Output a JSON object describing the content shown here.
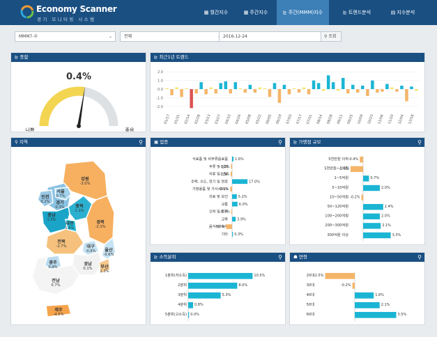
{
  "header": {
    "logo_title": "Economy Scanner",
    "logo_subtitle": "경기 모니터링 시스템",
    "nav": [
      {
        "label": "월간지수",
        "icon": "calendar-icon",
        "active": false
      },
      {
        "label": "주간지수",
        "icon": "calendar-icon",
        "active": false
      },
      {
        "label": "주간(MMM)지수",
        "icon": "chart-icon",
        "active": true
      },
      {
        "label": "트렌드분석",
        "icon": "trend-icon",
        "active": false
      },
      {
        "label": "지수분석",
        "icon": "analysis-icon",
        "active": false
      }
    ]
  },
  "filters": {
    "index_select": "MMM7-수",
    "region_select": "전체",
    "date": "2016-12-24",
    "search_label": "조회"
  },
  "summary": {
    "title": "종합",
    "value": "0.4%",
    "bad_label": "나쁨",
    "good_label": "좋음",
    "gauge_fraction": 0.55
  },
  "trend": {
    "title": "최근1년 트렌드",
    "chart_data": {
      "type": "bar",
      "ylim": [
        -2.5,
        2.5
      ],
      "yticks": [
        "2.0",
        "1.0",
        "0.0",
        "-1.0",
        "-2.0"
      ],
      "yticks_values": [
        2.0,
        1.0,
        0.0,
        -1.0,
        -2.0
      ],
      "xticks": [
        "01/17",
        "01/31",
        "02/14",
        "02/28",
        "03/13",
        "03/27",
        "04/10",
        "04/24",
        "05/08",
        "05/22",
        "06/05",
        "06/19",
        "07/03",
        "07/17",
        "07/31",
        "08/14",
        "08/28",
        "09/11",
        "09/25",
        "10/09",
        "10/23",
        "11/06",
        "11/20",
        "12/04",
        "12/18"
      ],
      "values": [
        0.1,
        -0.7,
        0.2,
        -0.9,
        0.1,
        -2.2,
        -0.5,
        0.8,
        -0.6,
        0.2,
        -0.5,
        0.7,
        0.9,
        -0.5,
        0.8,
        0.1,
        -0.4,
        0.5,
        -0.4,
        0.2,
        0.1,
        -0.9,
        0.7,
        -1.6,
        0.5,
        -0.6,
        0.1,
        -0.4,
        0.2,
        -0.6,
        1.0,
        0.7,
        -0.2,
        1.6,
        0.8,
        -0.2,
        1.3,
        -0.5,
        0.5,
        -0.4,
        0.4,
        -0.8,
        1.0,
        -0.4,
        -0.3,
        0.6,
        0.2,
        -0.3,
        0.4,
        -1.4,
        0.3,
        -0.2
      ],
      "highlight_index": 5,
      "colors": {
        "positive": "#1bb5d4",
        "negative": "#f4b569",
        "highlight": "#d9534f",
        "neutral": "#f5e46a"
      }
    }
  },
  "region": {
    "title": "지역",
    "labels": [
      {
        "name": "강원",
        "value": "-3.0%"
      },
      {
        "name": "서울",
        "value": "0.7%"
      },
      {
        "name": "인천",
        "value": "0.2%"
      },
      {
        "name": "경기",
        "value": "0.3%"
      },
      {
        "name": "충북",
        "value": "1.3%"
      },
      {
        "name": "충남",
        "value": "1.3%"
      },
      {
        "name": "대전",
        "value": "1.6%"
      },
      {
        "name": "경북",
        "value": "-2.3%"
      },
      {
        "name": "전북",
        "value": "-2.7%"
      },
      {
        "name": "대구",
        "value": "-0.8%"
      },
      {
        "name": "울산",
        "value": "-0.6%"
      },
      {
        "name": "광주",
        "value": "0.4%"
      },
      {
        "name": "경남",
        "value": "0.1%"
      },
      {
        "name": "부산",
        "value": "1.3%"
      },
      {
        "name": "전남",
        "value": "0.7%"
      },
      {
        "name": "제주",
        "value": "-4.5%"
      }
    ]
  },
  "industry": {
    "title": "업종",
    "chart_data": {
      "type": "bar",
      "orientation": "horizontal",
      "xlim": [
        -8,
        20
      ],
      "categories": [
        "식료품 및 비주류음료품",
        "주류 및 담배",
        "의류 및 신발",
        "주택, 수도, 전기 및 연료",
        "가정용품 및 가사서비스",
        "의료 및 보건",
        "교통",
        "오락 및 문화",
        "교육",
        "음식 및 숙박",
        "기타"
      ],
      "values": [
        1.6,
        -1.2,
        -1.5,
        17.0,
        -2.1,
        5.2,
        6.0,
        -0.7,
        3.9,
        -6.6,
        0.3
      ],
      "labels": [
        "1.6%",
        "-1.2%",
        "-1.5%",
        "17.0%",
        "-2.1%",
        "5.2%",
        "6.0%",
        "-0.7%",
        "3.9%",
        "-6.6%",
        "0.3%"
      ]
    }
  },
  "store_size": {
    "title": "가맹점 규모",
    "chart_data": {
      "type": "bar",
      "orientation": "horizontal",
      "xlim": [
        -3,
        4
      ],
      "categories": [
        "5천만원 이하",
        "5천만원~1억원",
        "1~5억원",
        "5~10억원",
        "10~50억원",
        "50~120억원",
        "100~200억원",
        "200~300억원",
        "300억원 이상"
      ],
      "values": [
        -0.4,
        -1.5,
        0.7,
        2.0,
        -0.2,
        2.4,
        2.0,
        2.1,
        3.3
      ],
      "labels": [
        "-0.4%",
        "-1.5%",
        "0.7%",
        "2.0%",
        "-0.2%",
        "2.4%",
        "2.0%",
        "2.1%",
        "3.3%"
      ]
    }
  },
  "income": {
    "title": "소득분위",
    "chart_data": {
      "type": "bar",
      "orientation": "horizontal",
      "xlim": [
        -1,
        12
      ],
      "categories": [
        "1분위(저소득)",
        "2분위",
        "3분위",
        "4분위",
        "5분위(고소득)"
      ],
      "values": [
        10.5,
        8.0,
        5.3,
        0.8,
        0.0
      ],
      "labels": [
        "10.5%",
        "8.0%",
        "5.3%",
        "0.8%",
        "0.0%"
      ]
    }
  },
  "age": {
    "title": "연령",
    "chart_data": {
      "type": "bar",
      "orientation": "horizontal",
      "xlim": [
        -3,
        4
      ],
      "categories": [
        "20대",
        "30대",
        "40대",
        "50대",
        "60대"
      ],
      "values": [
        -2.5,
        -0.2,
        1.6,
        2.1,
        3.5
      ],
      "labels": [
        "-2.5%",
        "-0.2%",
        "1.6%",
        "2.1%",
        "3.5%"
      ]
    }
  },
  "colors": {
    "header": "#1a4f82",
    "nav_active": "#3d80b8",
    "positive_bar": "#1bb5d4",
    "negative_bar": "#f4b569"
  }
}
